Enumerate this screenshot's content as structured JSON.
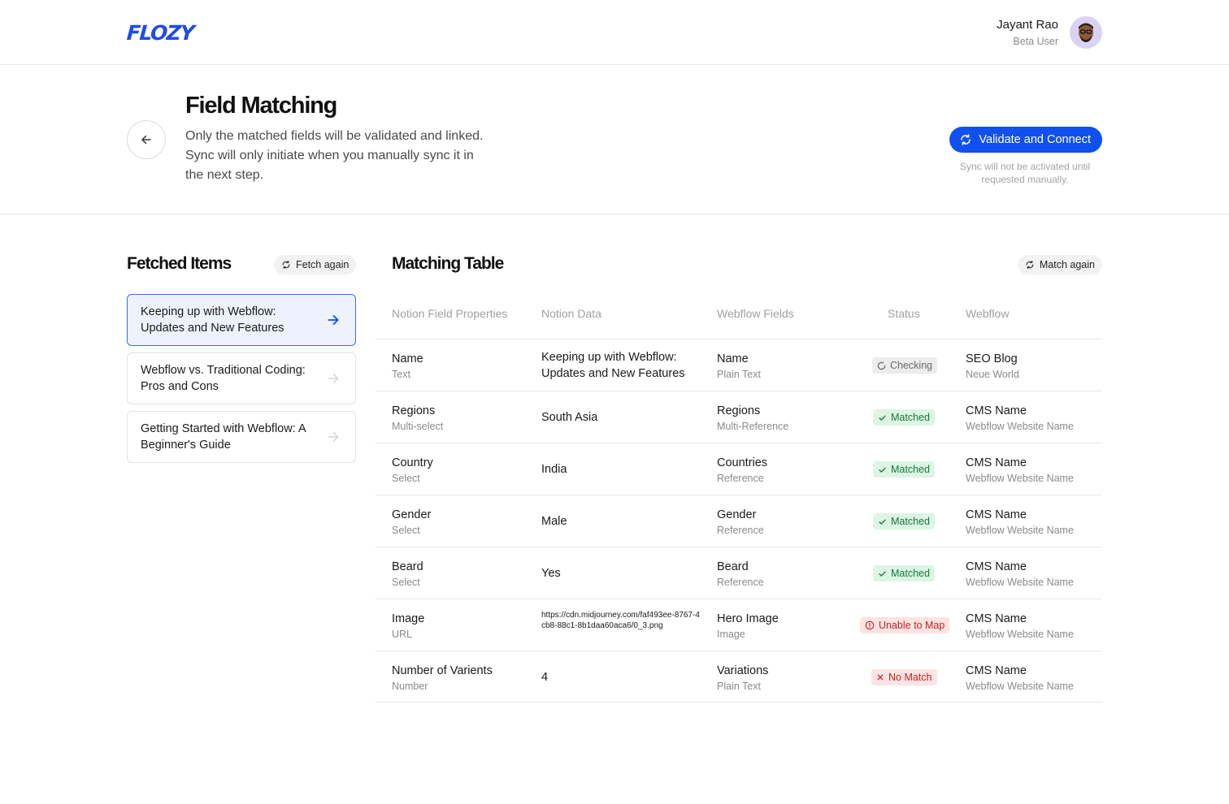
{
  "header": {
    "logo": "FLOZY",
    "user_name": "Jayant Rao",
    "user_role": "Beta User"
  },
  "page": {
    "title": "Field Matching",
    "description": "Only the matched fields will be validated and linked. Sync will only initiate when you manually sync it in the next step.",
    "primary_button": "Validate and Connect",
    "primary_note": "Sync will not be activated until requested manually."
  },
  "fetched": {
    "title": "Fetched Items",
    "action": "Fetch again",
    "items": [
      {
        "label": "Keeping up with Webflow: Updates and New Features",
        "active": true
      },
      {
        "label": "Webflow vs. Traditional Coding: Pros and Cons",
        "active": false
      },
      {
        "label": "Getting Started with Webflow: A Beginner's Guide",
        "active": false
      }
    ]
  },
  "matching": {
    "title": "Matching Table",
    "action": "Match again",
    "columns": [
      "Notion Field Properties",
      "Notion Data",
      "Webflow Fields",
      "Status",
      "Webflow"
    ],
    "rows": [
      {
        "field": "Name",
        "field_type": "Text",
        "data": "Keeping up with Webflow: Updates and New Features",
        "wf_field": "Name",
        "wf_type": "Plain Text",
        "status": "Checking",
        "status_kind": "checking",
        "wf": "SEO Blog",
        "wf_sub": "Neue World"
      },
      {
        "field": "Regions",
        "field_type": "Multi-select",
        "data": "South Asia",
        "wf_field": "Regions",
        "wf_type": "Multi-Reference",
        "status": "Matched",
        "status_kind": "matched",
        "wf": "CMS Name",
        "wf_sub": "Webflow Website Name"
      },
      {
        "field": "Country",
        "field_type": "Select",
        "data": "India",
        "wf_field": "Countries",
        "wf_type": "Reference",
        "status": "Matched",
        "status_kind": "matched",
        "wf": "CMS Name",
        "wf_sub": "Webflow Website Name"
      },
      {
        "field": "Gender",
        "field_type": "Select",
        "data": "Male",
        "wf_field": "Gender",
        "wf_type": "Reference",
        "status": "Matched",
        "status_kind": "matched",
        "wf": "CMS Name",
        "wf_sub": "Webflow Website Name"
      },
      {
        "field": "Beard",
        "field_type": "Select",
        "data": "Yes",
        "wf_field": "Beard",
        "wf_type": "Reference",
        "status": "Matched",
        "status_kind": "matched",
        "wf": "CMS Name",
        "wf_sub": "Webflow Website Name"
      },
      {
        "field": "Image",
        "field_type": "URL",
        "data": "https://cdn.midjourney.com/faf493ee-8767-4cb8-88c1-8b1daa60aca6/0_3.png",
        "wf_field": "Hero Image",
        "wf_type": "Image",
        "status": "Unable to Map",
        "status_kind": "unable",
        "wf": "CMS Name",
        "wf_sub": "Webflow Website Name"
      },
      {
        "field": "Number of Varients",
        "field_type": "Number",
        "data": "4",
        "wf_field": "Variations",
        "wf_type": "Plain Text",
        "status": "No Match",
        "status_kind": "nomatch",
        "wf": "CMS Name",
        "wf_sub": "Webflow Website Name"
      }
    ]
  },
  "colors": {
    "accent": "#1150f0",
    "matched": "#177a3c",
    "error": "#c42424"
  }
}
